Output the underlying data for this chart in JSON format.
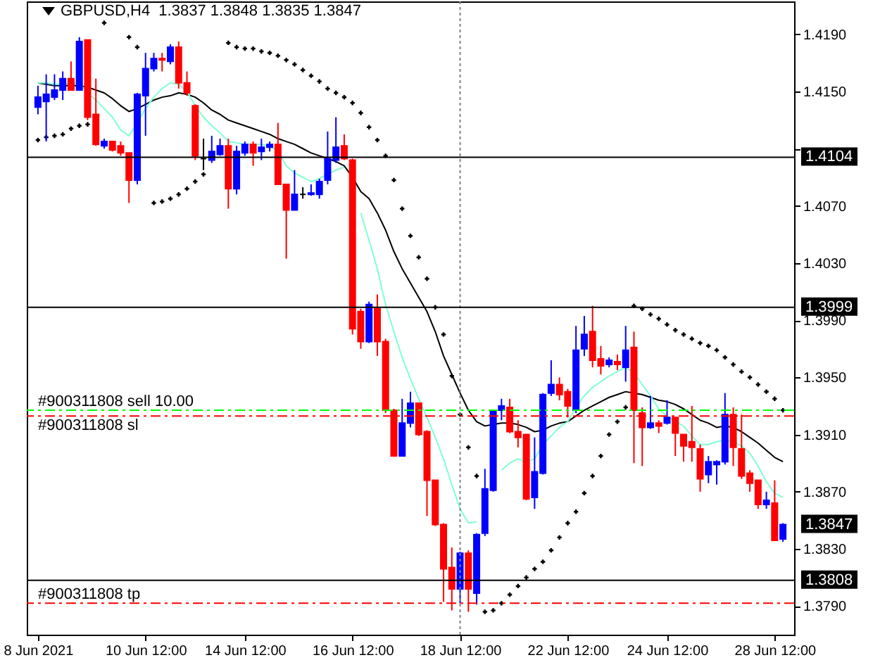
{
  "chart_data": {
    "type": "candlestick",
    "title": "GBPUSD,H4  1.3837 1.3848 1.3835 1.3847",
    "categories": [
      "8 Jun 2021",
      null,
      null,
      null,
      null,
      null,
      null,
      null,
      null,
      null,
      null,
      null,
      null,
      "10 Jun 12:00",
      null,
      null,
      null,
      null,
      null,
      null,
      null,
      null,
      null,
      null,
      null,
      "14 Jun 12:00",
      null,
      null,
      null,
      null,
      null,
      null,
      null,
      null,
      null,
      null,
      null,
      null,
      "16 Jun 12:00",
      null,
      null,
      null,
      null,
      null,
      null,
      null,
      null,
      null,
      null,
      null,
      null,
      "18 Jun 12:00",
      null,
      null,
      null,
      null,
      null,
      null,
      null,
      null,
      null,
      null,
      null,
      null,
      "22 Jun 12:00",
      null,
      null,
      null,
      null,
      null,
      null,
      null,
      null,
      null,
      null,
      null,
      "24 Jun 12:00",
      null,
      null,
      null,
      null,
      null,
      null,
      null,
      null,
      null,
      null,
      null,
      null,
      "28 Jun 12:00",
      null
    ],
    "ohlc": [
      [
        1.4139,
        1.4154,
        1.4134,
        1.4146
      ],
      [
        1.4143,
        1.4162,
        1.4115,
        1.4148
      ],
      [
        1.4146,
        1.4162,
        1.4144,
        1.4151
      ],
      [
        1.4151,
        1.4164,
        1.4144,
        1.4159
      ],
      [
        1.4159,
        1.4171,
        1.4151,
        1.4151
      ],
      [
        1.4151,
        1.4188,
        1.4151,
        1.4185
      ],
      [
        1.4186,
        1.4186,
        1.413,
        1.4132
      ],
      [
        1.4134,
        1.4159,
        1.4112,
        1.4113
      ],
      [
        1.4112,
        1.4117,
        1.411,
        1.4115
      ],
      [
        1.4115,
        1.4115,
        1.4108,
        1.4109
      ],
      [
        1.4112,
        1.4115,
        1.4105,
        1.4107
      ],
      [
        1.4107,
        1.4107,
        1.4072,
        1.4088
      ],
      [
        1.4088,
        1.4149,
        1.4085,
        1.4148
      ],
      [
        1.4147,
        1.4177,
        1.4119,
        1.4166
      ],
      [
        1.4166,
        1.4177,
        1.4164,
        1.4173
      ],
      [
        1.4173,
        1.4177,
        1.4164,
        1.4172
      ],
      [
        1.4171,
        1.4183,
        1.4169,
        1.4181
      ],
      [
        1.4181,
        1.4185,
        1.4152,
        1.4156
      ],
      [
        1.4156,
        1.4164,
        1.4147,
        1.4149
      ],
      [
        1.414,
        1.4141,
        1.4102,
        1.4105
      ],
      [
        1.4103,
        1.4117,
        1.4095,
        1.4103
      ],
      [
        1.4102,
        1.4119,
        1.41,
        1.4108
      ],
      [
        1.4106,
        1.4117,
        1.4105,
        1.4112
      ],
      [
        1.4112,
        1.4117,
        1.4068,
        1.4082
      ],
      [
        1.4082,
        1.4112,
        1.4078,
        1.4108
      ],
      [
        1.4107,
        1.4115,
        1.4105,
        1.4113
      ],
      [
        1.4113,
        1.4115,
        1.4098,
        1.4107
      ],
      [
        1.4108,
        1.4117,
        1.4102,
        1.4111
      ],
      [
        1.4111,
        1.4115,
        1.4108,
        1.4113
      ],
      [
        1.4113,
        1.4128,
        1.4085,
        1.4085
      ],
      [
        1.4085,
        1.4085,
        1.4033,
        1.4067
      ],
      [
        1.4067,
        1.4095,
        1.4067,
        1.4078
      ],
      [
        1.4078,
        1.4083,
        1.4075,
        1.4078
      ],
      [
        1.4078,
        1.4085,
        1.4077,
        1.4079
      ],
      [
        1.4078,
        1.4089,
        1.4075,
        1.4087
      ],
      [
        1.4088,
        1.4122,
        1.4085,
        1.4103
      ],
      [
        1.4102,
        1.4132,
        1.41,
        1.4111
      ],
      [
        1.4112,
        1.412,
        1.4102,
        1.4103
      ],
      [
        1.4102,
        1.4103,
        1.398,
        1.3984
      ],
      [
        1.3996,
        1.3998,
        1.397,
        1.3975
      ],
      [
        1.3975,
        1.4003,
        1.3974,
        1.4001
      ],
      [
        1.3998,
        1.4008,
        1.3965,
        1.3975
      ],
      [
        1.3975,
        1.3977,
        1.3925,
        1.3927
      ],
      [
        1.3927,
        1.3928,
        1.3895,
        1.3895
      ],
      [
        1.3895,
        1.3935,
        1.3895,
        1.3918
      ],
      [
        1.3918,
        1.394,
        1.3915,
        1.3932
      ],
      [
        1.3932,
        1.3932,
        1.3909,
        1.391
      ],
      [
        1.3912,
        1.3913,
        1.3853,
        1.3878
      ],
      [
        1.3878,
        1.3878,
        1.3846,
        1.3847
      ],
      [
        1.3847,
        1.3848,
        1.3793,
        1.3816
      ],
      [
        1.3817,
        1.3831,
        1.3787,
        1.3802
      ],
      [
        1.3802,
        1.3828,
        1.3792,
        1.3827
      ],
      [
        1.3827,
        1.3829,
        1.3786,
        1.3802
      ],
      [
        1.3799,
        1.3841,
        1.3791,
        1.384
      ],
      [
        1.3841,
        1.3886,
        1.3839,
        1.3872
      ],
      [
        1.3871,
        1.3927,
        1.387,
        1.3926
      ],
      [
        1.3927,
        1.3935,
        1.392,
        1.393
      ],
      [
        1.3929,
        1.3935,
        1.3911,
        1.3912
      ],
      [
        1.3912,
        1.392,
        1.3901,
        1.3908
      ],
      [
        1.391,
        1.391,
        1.3864,
        1.3865
      ],
      [
        1.3866,
        1.3908,
        1.3858,
        1.3884
      ],
      [
        1.3883,
        1.3939,
        1.3882,
        1.3938
      ],
      [
        1.3939,
        1.3962,
        1.3937,
        1.3945
      ],
      [
        1.3945,
        1.395,
        1.3934,
        1.3938
      ],
      [
        1.394,
        1.3942,
        1.3922,
        1.393
      ],
      [
        1.3927,
        1.3986,
        1.3925,
        1.3969
      ],
      [
        1.397,
        1.3993,
        1.3965,
        1.398
      ],
      [
        1.3982,
        1.4,
        1.3957,
        1.3962
      ],
      [
        1.3963,
        1.3972,
        1.3952,
        1.3958
      ],
      [
        1.3959,
        1.3964,
        1.3957,
        1.3962
      ],
      [
        1.3961,
        1.3966,
        1.3955,
        1.3959
      ],
      [
        1.3957,
        1.3986,
        1.3947,
        1.3969
      ],
      [
        1.3971,
        1.3982,
        1.389,
        1.3927
      ],
      [
        1.3925,
        1.3929,
        1.3888,
        1.3915
      ],
      [
        1.3915,
        1.3937,
        1.3914,
        1.3918
      ],
      [
        1.3918,
        1.392,
        1.3911,
        1.3916
      ],
      [
        1.3918,
        1.3934,
        1.3917,
        1.3922
      ],
      [
        1.3922,
        1.3922,
        1.3895,
        1.3911
      ],
      [
        1.391,
        1.391,
        1.3891,
        1.3902
      ],
      [
        1.3905,
        1.393,
        1.3891,
        1.3901
      ],
      [
        1.39,
        1.3903,
        1.387,
        1.3879
      ],
      [
        1.3882,
        1.3895,
        1.3876,
        1.3891
      ],
      [
        1.3889,
        1.3892,
        1.3875,
        1.3891
      ],
      [
        1.3891,
        1.3939,
        1.3889,
        1.3924
      ],
      [
        1.3924,
        1.3929,
        1.3888,
        1.3901
      ],
      [
        1.39,
        1.3924,
        1.3879,
        1.3881
      ],
      [
        1.3883,
        1.3885,
        1.387,
        1.3876
      ],
      [
        1.3878,
        1.3878,
        1.3858,
        1.3861
      ],
      [
        1.3861,
        1.387,
        1.3858,
        1.3864
      ],
      [
        1.3862,
        1.3878,
        1.3836,
        1.3836
      ],
      [
        1.3837,
        1.3848,
        1.3835,
        1.3847
      ]
    ],
    "colors": [
      "#0000ff",
      "#0000ff",
      "#0000ff",
      "#0000ff",
      "#ff0000",
      "#0000ff",
      "#ff0000",
      "#ff0000",
      "#0000ff",
      "#ff0000",
      "#ff0000",
      "#ff0000",
      "#0000ff",
      "#0000ff",
      "#0000ff",
      "#ff0000",
      "#0000ff",
      "#ff0000",
      "#ff0000",
      "#ff0000",
      "#000000",
      "#0000ff",
      "#0000ff",
      "#ff0000",
      "#0000ff",
      "#0000ff",
      "#ff0000",
      "#0000ff",
      "#0000ff",
      "#ff0000",
      "#ff0000",
      "#0000ff",
      "#000000",
      "#0000ff",
      "#0000ff",
      "#0000ff",
      "#0000ff",
      "#ff0000",
      "#ff0000",
      "#ff0000",
      "#0000ff",
      "#ff0000",
      "#ff0000",
      "#ff0000",
      "#0000ff",
      "#0000ff",
      "#ff0000",
      "#ff0000",
      "#ff0000",
      "#ff0000",
      "#ff0000",
      "#0000ff",
      "#ff0000",
      "#0000ff",
      "#0000ff",
      "#0000ff",
      "#0000ff",
      "#ff0000",
      "#ff0000",
      "#ff0000",
      "#0000ff",
      "#0000ff",
      "#0000ff",
      "#ff0000",
      "#ff0000",
      "#0000ff",
      "#0000ff",
      "#ff0000",
      "#ff0000",
      "#0000ff",
      "#ff0000",
      "#0000ff",
      "#ff0000",
      "#ff0000",
      "#0000ff",
      "#ff0000",
      "#0000ff",
      "#ff0000",
      "#ff0000",
      "#ff0000",
      "#ff0000",
      "#0000ff",
      "#0000ff",
      "#0000ff",
      "#ff0000",
      "#ff0000",
      "#ff0000",
      "#ff0000",
      "#0000ff",
      "#ff0000",
      "#0000ff"
    ],
    "series": [
      {
        "type": "line",
        "color": "#000000",
        "values": [
          1.4156,
          1.4155,
          1.4154,
          1.4154,
          1.4154,
          1.4154,
          1.4153,
          1.4151,
          1.4149,
          1.4145,
          1.414,
          1.4136,
          1.4138,
          1.4141,
          1.4144,
          1.4146,
          1.4147,
          1.4149,
          1.4148,
          1.4146,
          1.4142,
          1.4137,
          1.4134,
          1.413,
          1.4128,
          1.4126,
          1.4124,
          1.4122,
          1.412,
          1.4117,
          1.4115,
          1.4113,
          1.411,
          1.4107,
          1.4105,
          1.4103,
          1.4101,
          1.4098,
          1.409,
          1.408,
          1.4075,
          1.4065,
          1.4053,
          1.4038,
          1.4026,
          1.4016,
          1.4006,
          1.3996,
          1.3982,
          1.3965,
          1.3952,
          1.3939,
          1.3927,
          1.3919,
          1.3916,
          1.3917,
          1.3918,
          1.3918,
          1.3917,
          1.3915,
          1.3912,
          1.3913,
          1.3916,
          1.3918,
          1.3919,
          1.3923,
          1.3927,
          1.393,
          1.3933,
          1.3936,
          1.3938,
          1.394,
          1.3939,
          1.3938,
          1.3936,
          1.3934,
          1.3933,
          1.3931,
          1.3928,
          1.3924,
          1.392,
          1.3918,
          1.3915,
          1.3916,
          1.3915,
          1.3912,
          1.3908,
          1.3904,
          1.3899,
          1.3894,
          1.3891
        ]
      },
      {
        "type": "line",
        "color": "#7fffd4",
        "values": [
          1.4156,
          1.4156,
          1.4155,
          1.4155,
          1.4156,
          1.4156,
          1.4149,
          1.4144,
          1.4138,
          1.4132,
          1.4123,
          1.4119,
          1.4128,
          1.4138,
          1.4146,
          1.4152,
          1.4156,
          1.4155,
          1.415,
          1.414,
          1.4132,
          1.4126,
          1.4121,
          1.4115,
          1.4114,
          1.4113,
          1.4113,
          1.4113,
          1.4112,
          1.4108,
          1.4098,
          1.4093,
          1.409,
          1.4087,
          1.4089,
          1.4092,
          1.4095,
          1.4097,
          null,
          1.4065,
          1.4046,
          1.4026,
          1.4001,
          1.3982,
          1.3964,
          1.3949,
          1.3935,
          1.3922,
          1.3908,
          1.3893,
          1.3875,
          1.3858,
          1.3848,
          1.3849,
          null,
          null,
          1.3885,
          1.389,
          1.3893,
          1.3891,
          1.3893,
          1.3903,
          1.3909,
          1.3915,
          1.3919,
          1.3929,
          1.3937,
          1.3943,
          1.3947,
          1.3951,
          1.3954,
          1.3957,
          1.3953,
          1.3945,
          1.3937,
          1.3928,
          1.3923,
          1.3919,
          1.3916,
          1.3909,
          1.3903,
          1.3903,
          1.3905,
          1.3906,
          1.3905,
          1.3902,
          1.3897,
          1.3888,
          1.3877,
          1.3869,
          1.3866
        ]
      },
      {
        "type": "scatter",
        "color": "#000000",
        "marker": "cross",
        "values": [
          1.4116,
          1.4118,
          1.4119,
          1.412,
          1.4124,
          1.4126,
          1.4127,
          null,
          1.4198,
          null,
          null,
          1.4188,
          1.4181,
          null,
          1.4072,
          1.4073,
          1.4075,
          1.4078,
          1.4082,
          1.4087,
          1.4092,
          null,
          null,
          1.4184,
          1.4181,
          1.418,
          1.418,
          1.4178,
          1.4177,
          1.4175,
          1.4172,
          1.4169,
          1.4165,
          1.4161,
          1.4157,
          1.4152,
          1.4149,
          1.4146,
          1.4142,
          1.4135,
          1.4125,
          1.4116,
          1.4105,
          1.4088,
          1.4068,
          1.4049,
          1.4034,
          1.4019,
          1.3999,
          1.398,
          1.3951,
          1.3924,
          1.3901,
          1.3881,
          1.3786,
          1.3787,
          1.3792,
          1.3798,
          1.3804,
          1.381,
          1.3816,
          1.3821,
          1.3829,
          1.3838,
          1.3848,
          1.3856,
          1.3869,
          1.3881,
          1.3895,
          1.391,
          1.3919,
          1.3929,
          1.4,
          1.3998,
          1.3994,
          1.3991,
          1.3987,
          1.3983,
          1.398,
          1.3977,
          1.3974,
          1.3972,
          1.3969,
          1.3964,
          1.3959,
          1.3954,
          1.395,
          1.3945,
          1.394,
          1.3935,
          1.3927
        ]
      }
    ],
    "ylim": [
      1.377,
      1.4213
    ],
    "yticks": [
      {
        "value": 1.419,
        "label": "1.4190"
      },
      {
        "value": 1.415,
        "label": "1.4150"
      },
      {
        "value": 1.411,
        "label": null
      },
      {
        "value": 1.407,
        "label": "1.4070"
      },
      {
        "value": 1.403,
        "label": "1.4030"
      },
      {
        "value": 1.399,
        "label": "1.3990"
      },
      {
        "value": 1.395,
        "label": "1.3950"
      },
      {
        "value": 1.391,
        "label": "1.3910"
      },
      {
        "value": 1.387,
        "label": "1.3870"
      },
      {
        "value": 1.383,
        "label": "1.3830"
      },
      {
        "value": 1.379,
        "label": "1.3790"
      }
    ],
    "ref_lines": [
      {
        "axis": "x",
        "value": "18 Jun 12:00",
        "color": "#808080",
        "line_style": "dotted"
      },
      {
        "axis": "y",
        "value": 1.4104,
        "label": "1.4104",
        "color": "#000000",
        "line_style": "solid"
      },
      {
        "axis": "y",
        "value": 1.3999,
        "label": "1.3999",
        "color": "#000000",
        "line_style": "solid"
      },
      {
        "axis": "y",
        "value": 1.3808,
        "label": "1.3808",
        "color": "#000000",
        "line_style": "solid"
      },
      {
        "axis": "y",
        "value": 1.3927,
        "label": "#900311808 sell 10.00",
        "color": "#00ff00",
        "line_style": "dashed"
      },
      {
        "axis": "y",
        "value": 1.3923,
        "label": "#900311808 sl",
        "color": "#ff0000",
        "line_style": "dashed"
      },
      {
        "axis": "y",
        "value": 1.3792,
        "label": "#900311808 tp",
        "color": "#ff0000",
        "line_style": "dashed"
      }
    ],
    "annotations": [
      "1.3847"
    ],
    "grid": false
  }
}
